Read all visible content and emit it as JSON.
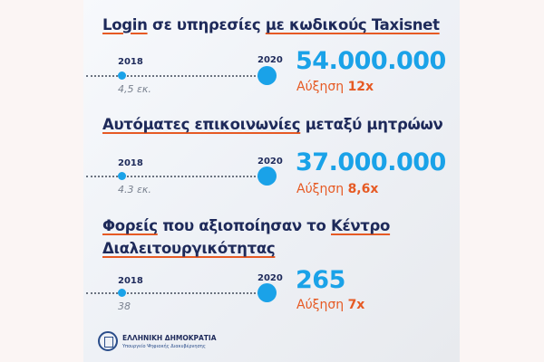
{
  "sections": [
    {
      "title_parts": [
        "Login",
        " σε υπηρεσίες ",
        "με κωδικούς Taxisnet"
      ],
      "year_from": "2018",
      "year_to": "2020",
      "old_value": "4,5 εκ.",
      "new_value": "54.000.000",
      "increase_label": "Αύξηση",
      "increase_value": "12x"
    },
    {
      "title_parts": [
        "Αυτόματες επικοινωνίες",
        " μεταξύ μητρώων"
      ],
      "year_from": "2018",
      "year_to": "2020",
      "old_value": "4.3 εκ.",
      "new_value": "37.000.000",
      "increase_label": "Αύξηση",
      "increase_value": "8,6x"
    },
    {
      "title_parts": [
        "Φορείς",
        " που αξιοποίησαν το ",
        "Κέντρο",
        "Διαλειτουργικότητας"
      ],
      "year_from": "2018",
      "year_to": "2020",
      "old_value": "38",
      "new_value": "265",
      "increase_label": "Αύξηση",
      "increase_value": "7x"
    }
  ],
  "footer": {
    "org": "ΕΛΛΗΝΙΚΗ ΔΗΜΟΚΡΑΤΙΑ",
    "ministry": "Υπουργείο Ψηφιακής Διακυβέρνησης"
  },
  "colors": {
    "navy": "#1e2a5a",
    "blue": "#1aa2e8",
    "orange": "#e65a24"
  }
}
